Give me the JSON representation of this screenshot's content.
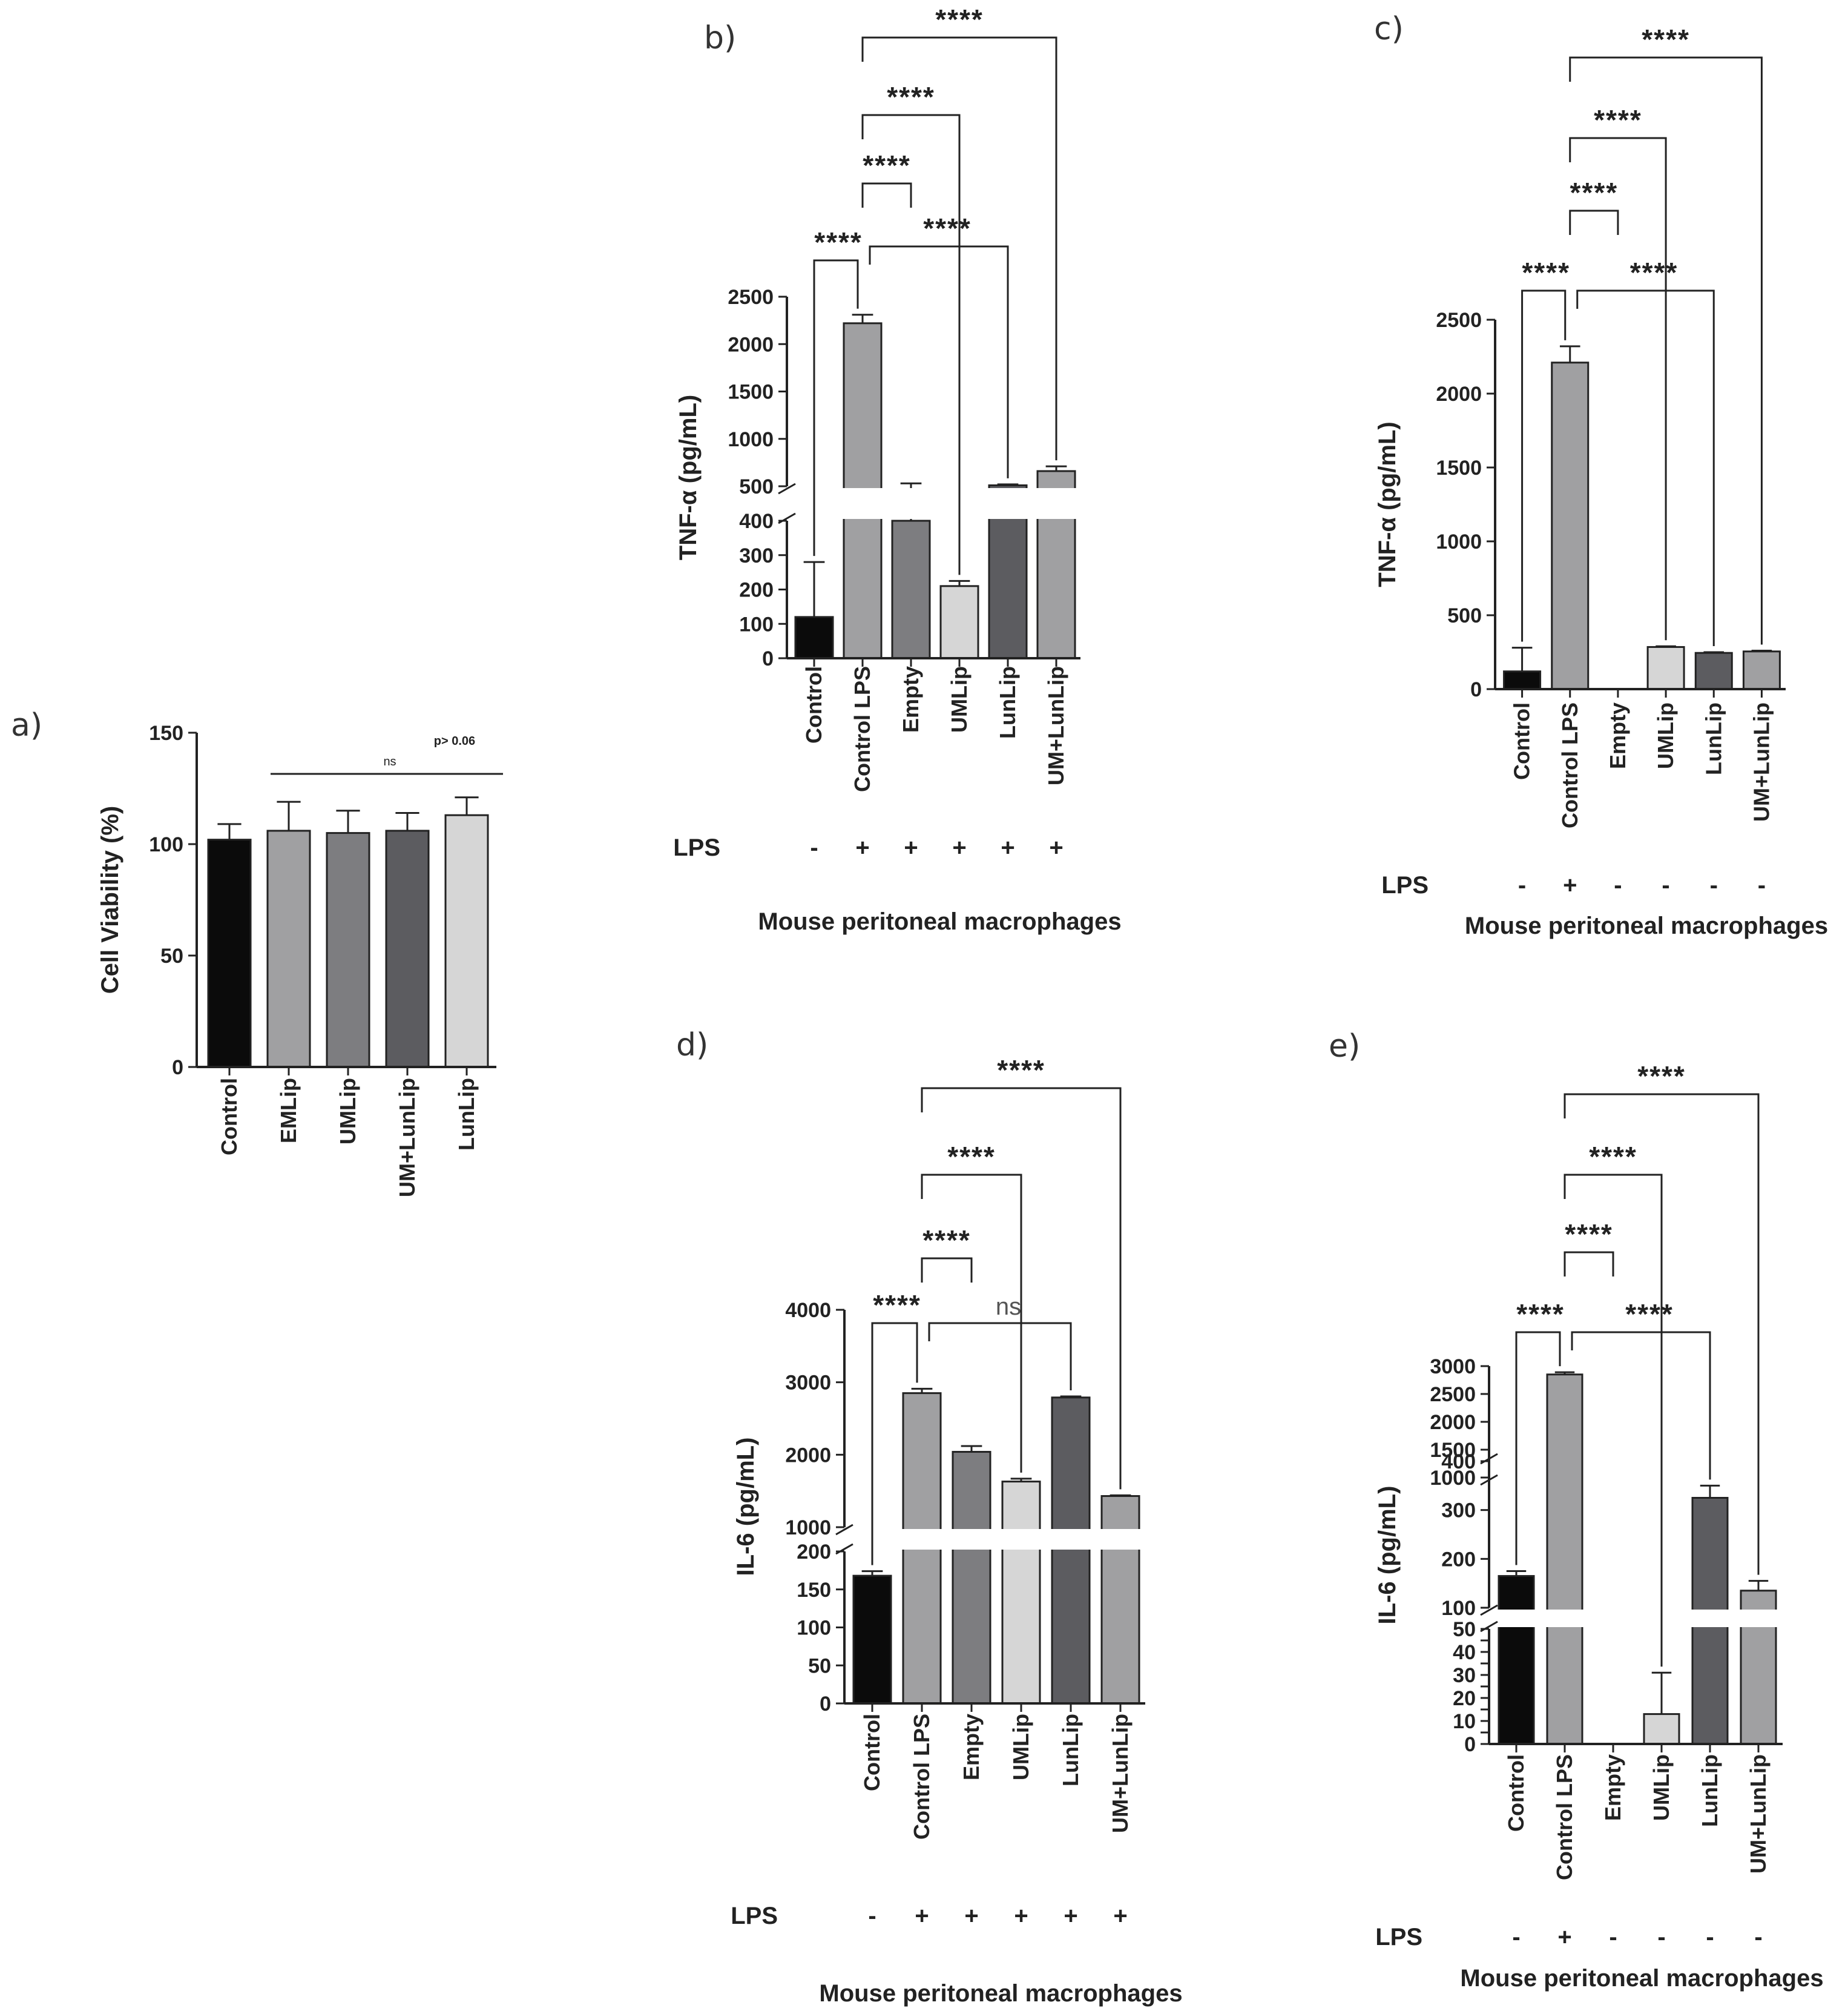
{
  "chart_data": [
    {
      "panel": "a)",
      "type": "bar",
      "ylabel": "Cell Viability (%)",
      "yticks": [
        0,
        50,
        100,
        150
      ],
      "ylim": [
        0,
        150
      ],
      "categories": [
        "Control",
        "EMLip",
        "UMLip",
        "UM+LunLip",
        "LunLip"
      ],
      "values": [
        102,
        106,
        105,
        106,
        113
      ],
      "errors": [
        7,
        13,
        10,
        8,
        8
      ],
      "colors": [
        "#0b0b0b",
        "#a0a0a2",
        "#7d7d80",
        "#5c5c60",
        "#d6d6d6"
      ],
      "annotation_ns": "ns",
      "annotation_p": "p> 0.06"
    },
    {
      "panel": "b)",
      "type": "bar",
      "ylabel": "TNF-α (pg/mL)",
      "axis_break": [
        400,
        500
      ],
      "yticks_lower": [
        0,
        100,
        200,
        300,
        400
      ],
      "yticks_upper": [
        500,
        1000,
        1500,
        2000,
        2500
      ],
      "categories": [
        "Control",
        "Control LPS",
        "Empty",
        "UMLip",
        "LunLip",
        "UM+LunLip"
      ],
      "values": [
        120,
        2220,
        470,
        210,
        510,
        660
      ],
      "errors": [
        160,
        90,
        60,
        15,
        10,
        50
      ],
      "colors": [
        "#0b0b0b",
        "#a0a0a2",
        "#7d7d80",
        "#d6d6d6",
        "#5c5c60",
        "#a0a0a2"
      ],
      "lps_label": "LPS",
      "lps": [
        "-",
        "+",
        "+",
        "+",
        "+",
        "+"
      ],
      "xlabel": "Mouse peritoneal macrophages",
      "significance": [
        {
          "from": 0,
          "to": 1,
          "label": "****"
        },
        {
          "from": 1,
          "to": 4,
          "label": "****"
        },
        {
          "from": 1,
          "to": 2,
          "label": "****"
        },
        {
          "from": 1,
          "to": 3,
          "label": "****"
        },
        {
          "from": 1,
          "to": 5,
          "label": "****"
        }
      ]
    },
    {
      "panel": "c)",
      "type": "bar",
      "ylabel": "TNF-α (pg/mL)",
      "yticks": [
        0,
        500,
        1000,
        1500,
        2000,
        2500
      ],
      "ylim": [
        0,
        2500
      ],
      "categories": [
        "Control",
        "Control LPS",
        "Empty",
        "UMLip",
        "LunLip",
        "UM+LunLip"
      ],
      "values": [
        120,
        2210,
        0,
        285,
        245,
        255
      ],
      "errors": [
        160,
        110,
        0,
        5,
        5,
        5
      ],
      "colors": [
        "#0b0b0b",
        "#a0a0a2",
        "#7d7d80",
        "#d6d6d6",
        "#5c5c60",
        "#a0a0a2"
      ],
      "lps_label": "LPS",
      "lps": [
        "-",
        "+",
        "-",
        "-",
        "-",
        "-"
      ],
      "xlabel": "Mouse peritoneal macrophages",
      "significance": [
        {
          "from": 0,
          "to": 1,
          "label": "****"
        },
        {
          "from": 1,
          "to": 4,
          "label": "****"
        },
        {
          "from": 1,
          "to": 2,
          "label": "****"
        },
        {
          "from": 1,
          "to": 3,
          "label": "****"
        },
        {
          "from": 1,
          "to": 5,
          "label": "****"
        }
      ]
    },
    {
      "panel": "d)",
      "type": "bar",
      "ylabel": "IL-6 (pg/mL)",
      "axis_break": [
        200,
        1000
      ],
      "yticks_lower": [
        0,
        50,
        100,
        150,
        200
      ],
      "yticks_upper": [
        1000,
        2000,
        3000,
        4000
      ],
      "categories": [
        "Control",
        "Control LPS",
        "Empty",
        "UMLip",
        "LunLip",
        "UM+LunLip"
      ],
      "values": [
        168,
        2850,
        2040,
        1630,
        2790,
        1430
      ],
      "errors": [
        6,
        60,
        80,
        40,
        15,
        10
      ],
      "colors": [
        "#0b0b0b",
        "#a0a0a2",
        "#7d7d80",
        "#d6d6d6",
        "#5c5c60",
        "#a0a0a2"
      ],
      "lps_label": "LPS",
      "lps": [
        "-",
        "+",
        "+",
        "+",
        "+",
        "+"
      ],
      "xlabel": "Mouse peritoneal macrophages",
      "significance": [
        {
          "from": 0,
          "to": 1,
          "label": "****"
        },
        {
          "from": 1,
          "to": 4,
          "label": "ns"
        },
        {
          "from": 1,
          "to": 2,
          "label": "****"
        },
        {
          "from": 1,
          "to": 3,
          "label": "****"
        },
        {
          "from": 1,
          "to": 5,
          "label": "****"
        }
      ]
    },
    {
      "panel": "e)",
      "type": "bar",
      "ylabel": "IL-6 (pg/mL)",
      "axis_breaks": [
        [
          50,
          100
        ],
        [
          400,
          1000
        ]
      ],
      "yticks_lower": [
        0,
        5,
        10,
        15,
        20,
        25,
        30,
        35,
        40,
        45,
        50
      ],
      "yticks_lower_labels": [
        "0",
        "",
        "10",
        "",
        "20",
        "",
        "30",
        "",
        "40",
        "",
        "50"
      ],
      "yticks_middle": [
        100,
        200,
        300,
        400
      ],
      "yticks_upper": [
        1000,
        1500,
        2000,
        2500,
        3000
      ],
      "categories": [
        "Control",
        "Control LPS",
        "Empty",
        "UMLip",
        "LunLip",
        "UM+LunLip"
      ],
      "values": [
        165,
        2850,
        0,
        13,
        325,
        135
      ],
      "errors": [
        10,
        40,
        0,
        18,
        25,
        20
      ],
      "colors": [
        "#0b0b0b",
        "#a0a0a2",
        "#7d7d80",
        "#d6d6d6",
        "#5c5c60",
        "#a0a0a2"
      ],
      "lps_label": "LPS",
      "lps": [
        "-",
        "+",
        "-",
        "-",
        "-",
        "-"
      ],
      "xlabel": "Mouse peritoneal macrophages",
      "significance": [
        {
          "from": 0,
          "to": 1,
          "label": "****"
        },
        {
          "from": 1,
          "to": 4,
          "label": "****"
        },
        {
          "from": 1,
          "to": 2,
          "label": "****"
        },
        {
          "from": 1,
          "to": 3,
          "label": "****"
        },
        {
          "from": 1,
          "to": 5,
          "label": "****"
        }
      ]
    }
  ]
}
